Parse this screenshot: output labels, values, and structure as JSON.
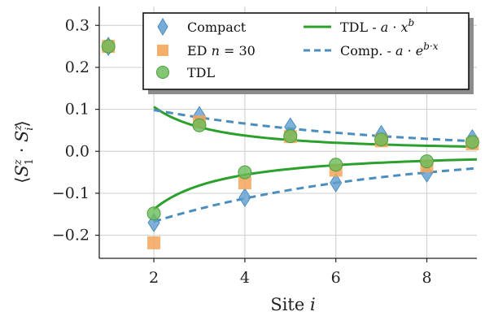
{
  "chart_data": {
    "type": "scatter",
    "xlabel": "Site i",
    "ylabel": "⟨S₁ᶻ · Sᵢᶻ⟩",
    "xlim": [
      0.8,
      9.1
    ],
    "ylim": [
      -0.255,
      0.345
    ],
    "xticks": [
      2,
      4,
      6,
      8
    ],
    "xtick_labels": [
      "2",
      "4",
      "6",
      "8"
    ],
    "yticks": [
      -0.2,
      -0.1,
      0.0,
      0.1,
      0.2,
      0.3
    ],
    "ytick_labels": [
      "−0.2",
      "−0.1",
      "0.0",
      "0.1",
      "0.2",
      "0.3"
    ],
    "grid": true,
    "legend_position": "top-right",
    "colors": {
      "compact": "#5f9ed1",
      "ed": "#f5a55a",
      "tdl": "#6cbb5a",
      "tdl_fit": "#2ca02c",
      "comp_fit": "#4b8dbd"
    },
    "series": [
      {
        "name": "Compact",
        "marker": "diamond",
        "x": [
          1,
          2,
          3,
          4,
          5,
          6,
          7,
          8,
          9
        ],
        "y": [
          0.25,
          -0.17,
          0.085,
          -0.11,
          0.058,
          -0.075,
          0.04,
          -0.052,
          0.03
        ]
      },
      {
        "name": "ED n = 30",
        "marker": "square",
        "x": [
          1,
          2,
          3,
          4,
          5,
          6,
          7,
          8,
          9
        ],
        "y": [
          0.25,
          -0.218,
          0.07,
          -0.075,
          0.035,
          -0.045,
          0.025,
          -0.035,
          0.018
        ]
      },
      {
        "name": "TDL",
        "marker": "circle",
        "x": [
          1,
          2,
          3,
          4,
          5,
          6,
          7,
          8,
          9
        ],
        "y": [
          0.25,
          -0.148,
          0.062,
          -0.05,
          0.036,
          -0.032,
          0.028,
          -0.024,
          0.022
        ]
      }
    ],
    "fits": [
      {
        "name": "TDL - a · x^b",
        "style": "solid",
        "branches": [
          {
            "a": 0.3,
            "b": -1.5,
            "x_from": 2,
            "x_to": 9.1
          },
          {
            "a": -0.34,
            "b": -1.3,
            "x_from": 2,
            "x_to": 9.1
          }
        ]
      },
      {
        "name": "Comp. - a · e^(b·x)",
        "style": "dashed",
        "branches": [
          {
            "a": 0.147,
            "b": -0.2,
            "x_from": 2,
            "x_to": 9.1
          },
          {
            "a": -0.25,
            "b": -0.2,
            "x_from": 2,
            "x_to": 9.1
          }
        ]
      }
    ],
    "legend": {
      "compact": "Compact",
      "ed_prefix": "ED",
      "ed_var": "n",
      "ed_value": " = 30",
      "tdl": "TDL",
      "tdl_fit_prefix": "TDL - ",
      "tdl_fit_a": "a",
      "tdl_fit_dot": " · ",
      "tdl_fit_x": "x",
      "tdl_fit_exp": "b",
      "comp_fit_prefix": "Comp. - ",
      "comp_fit_a": "a",
      "comp_fit_dot": " · ",
      "comp_fit_e": "e",
      "comp_fit_exp": "b·x"
    },
    "axis_text": {
      "x_word": "Site ",
      "x_var": "i",
      "y_left": "⟨",
      "y_s1": "S",
      "y_s1_sup": "z",
      "y_s1_sub": "1",
      "y_dot": " · ",
      "y_si": "S",
      "y_si_sup": "z",
      "y_si_sub": "i",
      "y_right": "⟩"
    }
  }
}
